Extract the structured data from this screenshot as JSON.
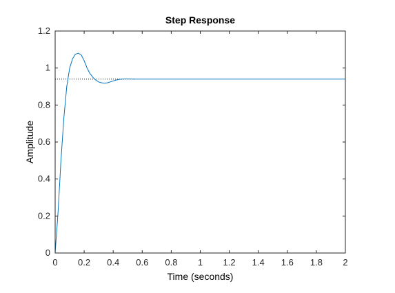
{
  "chart_data": {
    "type": "line",
    "title": "Step Response",
    "xlabel": "Time (seconds)",
    "ylabel": "Amplitude",
    "xlim": [
      0,
      2
    ],
    "ylim": [
      0,
      1.2
    ],
    "x_ticks": [
      "0",
      "0.2",
      "0.4",
      "0.6",
      "0.8",
      "1",
      "1.2",
      "1.4",
      "1.6",
      "1.8",
      "2"
    ],
    "y_ticks": [
      "0",
      "0.2",
      "0.4",
      "0.6",
      "0.8",
      "1",
      "1.2"
    ],
    "grid": false,
    "series": [
      {
        "x": [
          0,
          0.02,
          0.04,
          0.06,
          0.08,
          0.1,
          0.12,
          0.14,
          0.16,
          0.18,
          0.2,
          0.22,
          0.24,
          0.26,
          0.28,
          0.3,
          0.32,
          0.34,
          0.36,
          0.38,
          0.4,
          0.42,
          0.44,
          0.46,
          0.48,
          0.5,
          0.55,
          0.6,
          0.7,
          0.8,
          1.0,
          1.2,
          1.4,
          1.6,
          1.8,
          2.0
        ],
        "y": [
          0,
          0.22,
          0.5,
          0.73,
          0.9,
          1.0,
          1.05,
          1.075,
          1.08,
          1.07,
          1.04,
          1.0,
          0.97,
          0.95,
          0.935,
          0.925,
          0.92,
          0.918,
          0.92,
          0.925,
          0.93,
          0.935,
          0.938,
          0.94,
          0.941,
          0.941,
          0.94,
          0.94,
          0.94,
          0.94,
          0.94,
          0.94,
          0.94,
          0.94,
          0.94,
          0.94
        ],
        "color": "#0072BD"
      }
    ],
    "reference_line": {
      "y": 0.94,
      "x_end": 0.55,
      "style": "dotted",
      "color": "#000000"
    }
  }
}
